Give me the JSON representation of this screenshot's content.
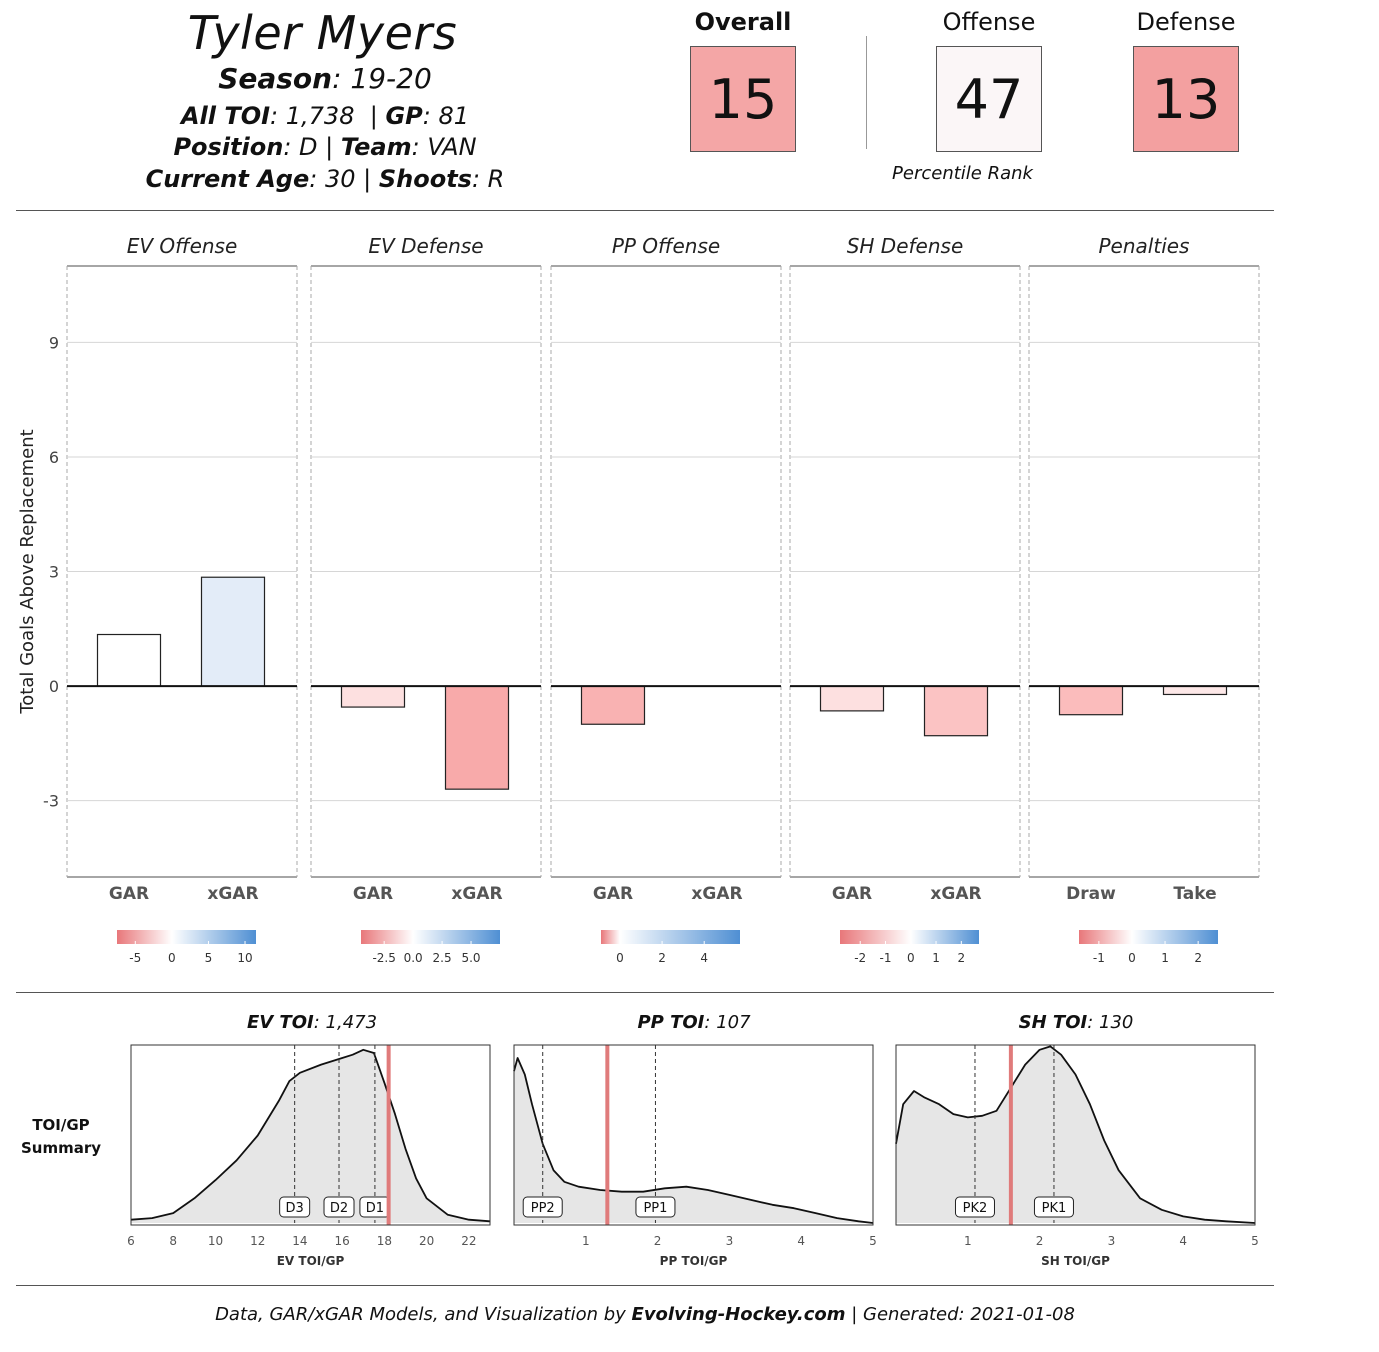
{
  "header": {
    "name": "Tyler Myers",
    "season_label": "Season",
    "season": "19-20",
    "toi_label": "All TOI",
    "toi": "1,738",
    "gp_label": "GP",
    "gp": "81",
    "position_label": "Position",
    "position": "D",
    "team_label": "Team",
    "team": "VAN",
    "age_label": "Current Age",
    "age": "30",
    "shoots_label": "Shoots",
    "shoots": "R"
  },
  "ranks": {
    "overall_label": "Overall",
    "overall": "15",
    "offense_label": "Offense",
    "offense": "47",
    "defense_label": "Defense",
    "defense": "13",
    "footnote": "Percentile Rank",
    "colors": {
      "overall": "#f4a6a6",
      "offense": "#fbf6f7",
      "defense": "#f3a0a0"
    }
  },
  "chart_data": [
    {
      "type": "bar",
      "ylabel": "Total Goals Above Replacement",
      "ylim": [
        -5,
        11
      ],
      "yticks": [
        -3,
        0,
        3,
        6,
        9
      ],
      "panels": [
        {
          "title": "EV Offense",
          "categories": [
            "GAR",
            "xGAR"
          ],
          "values": [
            1.35,
            2.85
          ],
          "colors": [
            "#ffffff",
            "#e3ecf8"
          ],
          "legend_ticks": [
            "-5",
            "0",
            "5",
            "10"
          ],
          "legend_range": [
            -7.5,
            11.5
          ]
        },
        {
          "title": "EV Defense",
          "categories": [
            "GAR",
            "xGAR"
          ],
          "values": [
            -0.55,
            -2.7
          ],
          "colors": [
            "#fde0e0",
            "#f8aaaa"
          ],
          "legend_ticks": [
            "-2.5",
            "0.0",
            "2.5",
            "5.0"
          ],
          "legend_range": [
            -4.5,
            7.5
          ]
        },
        {
          "title": "PP Offense",
          "categories": [
            "GAR",
            "xGAR"
          ],
          "values": [
            -1.0,
            0.0
          ],
          "colors": [
            "#f9b2b2",
            "#ffffff"
          ],
          "legend_ticks": [
            "0",
            "2",
            "4"
          ],
          "legend_range": [
            -0.9,
            5.7
          ]
        },
        {
          "title": "SH Defense",
          "categories": [
            "GAR",
            "xGAR"
          ],
          "values": [
            -0.65,
            -1.3
          ],
          "colors": [
            "#fde0e0",
            "#fbc3c3"
          ],
          "legend_ticks": [
            "-2",
            "-1",
            "0",
            "1",
            "2"
          ],
          "legend_range": [
            -2.8,
            2.7
          ]
        },
        {
          "title": "Penalties",
          "categories": [
            "Draw",
            "Take"
          ],
          "values": [
            -0.75,
            -0.22
          ],
          "colors": [
            "#fbbcbc",
            "#fde8e8"
          ],
          "legend_ticks": [
            "-1",
            "0",
            "1",
            "2"
          ],
          "legend_range": [
            -1.6,
            2.6
          ]
        }
      ]
    },
    {
      "type": "area",
      "row_label": "TOI/GP Summary",
      "panels": [
        {
          "title_label": "EV TOI",
          "title_value": "1,473",
          "xlabel": "EV TOI/GP",
          "xlim": [
            6,
            23
          ],
          "xticks": [
            6,
            8,
            10,
            12,
            14,
            16,
            18,
            20,
            22
          ],
          "density_x": [
            6,
            7,
            8,
            9,
            10,
            11,
            12,
            13,
            13.5,
            14,
            15,
            16,
            16.5,
            17,
            17.5,
            18,
            18.5,
            19,
            19.5,
            20,
            21,
            22,
            23
          ],
          "density_y": [
            0.02,
            0.03,
            0.06,
            0.15,
            0.26,
            0.38,
            0.53,
            0.74,
            0.86,
            0.91,
            0.96,
            1.0,
            1.02,
            1.05,
            1.03,
            0.85,
            0.66,
            0.45,
            0.27,
            0.15,
            0.05,
            0.02,
            0.01
          ],
          "markers": [
            {
              "label": "D3",
              "x": 13.75
            },
            {
              "label": "D2",
              "x": 15.85
            },
            {
              "label": "D1",
              "x": 17.55
            }
          ],
          "player_x": 18.2
        },
        {
          "title_label": "PP TOI",
          "title_value": "107",
          "xlabel": "PP TOI/GP",
          "xlim": [
            0,
            5
          ],
          "xticks": [
            1,
            2,
            3,
            4,
            5
          ],
          "density_x": [
            0,
            0.05,
            0.15,
            0.25,
            0.4,
            0.55,
            0.7,
            0.9,
            1.2,
            1.5,
            1.8,
            2.1,
            2.4,
            2.7,
            3.0,
            3.3,
            3.6,
            3.9,
            4.2,
            4.5,
            4.8,
            5.0
          ],
          "density_y": [
            0.92,
            1.0,
            0.9,
            0.72,
            0.48,
            0.32,
            0.25,
            0.22,
            0.2,
            0.19,
            0.19,
            0.21,
            0.22,
            0.2,
            0.17,
            0.14,
            0.11,
            0.09,
            0.06,
            0.03,
            0.01,
            0.0
          ],
          "markers": [
            {
              "label": "PP2",
              "x": 0.4
            },
            {
              "label": "PP1",
              "x": 1.97
            }
          ],
          "player_x": 1.3
        },
        {
          "title_label": "SH TOI",
          "title_value": "130",
          "xlabel": "SH TOI/GP",
          "xlim": [
            0,
            5
          ],
          "xticks": [
            1,
            2,
            3,
            4,
            5
          ],
          "density_x": [
            0,
            0.1,
            0.25,
            0.4,
            0.6,
            0.8,
            1.0,
            1.2,
            1.4,
            1.6,
            1.8,
            2.0,
            2.15,
            2.3,
            2.5,
            2.7,
            2.9,
            3.1,
            3.4,
            3.7,
            4.0,
            4.3,
            4.6,
            5.0
          ],
          "density_y": [
            0.48,
            0.72,
            0.8,
            0.76,
            0.72,
            0.66,
            0.64,
            0.65,
            0.68,
            0.82,
            0.96,
            1.05,
            1.07,
            1.02,
            0.9,
            0.72,
            0.5,
            0.32,
            0.15,
            0.08,
            0.04,
            0.02,
            0.01,
            0.0
          ],
          "markers": [
            {
              "label": "PK2",
              "x": 1.1
            },
            {
              "label": "PK1",
              "x": 2.2
            }
          ],
          "player_x": 1.6
        }
      ]
    }
  ],
  "footer": {
    "prefix": "Data, GAR/xGAR Models, and Visualization by ",
    "site": "Evolving-Hockey.com",
    "suffix": " | Generated: 2021-01-08"
  }
}
